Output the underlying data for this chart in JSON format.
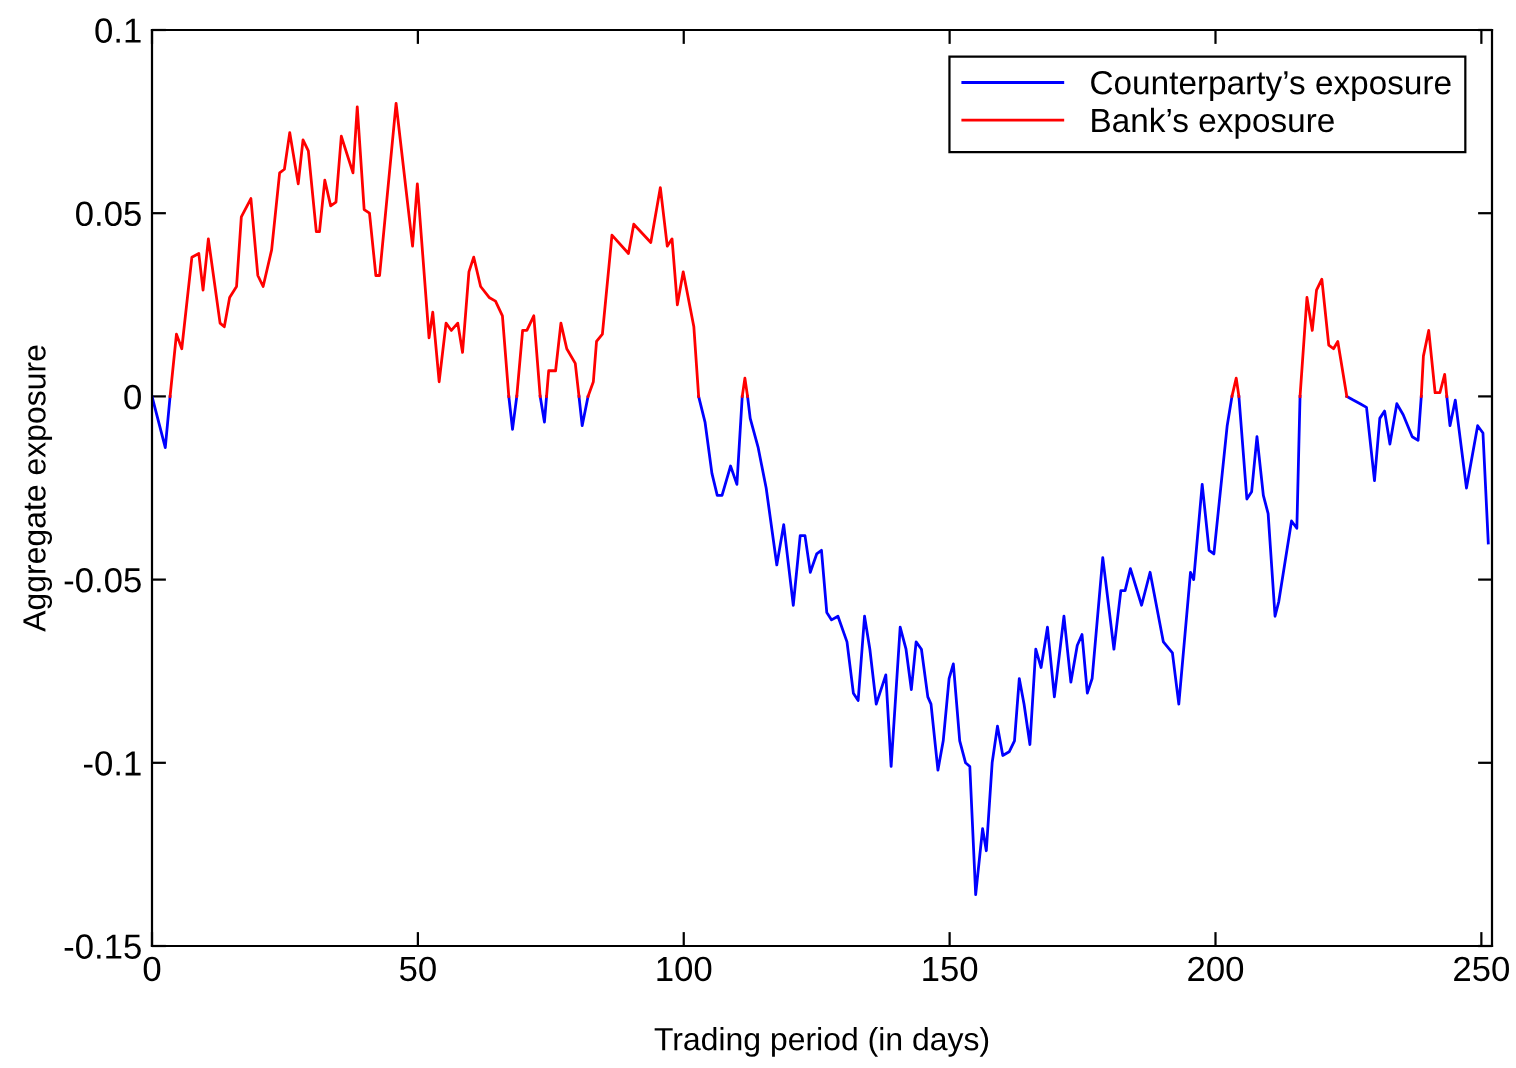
{
  "chart_data": {
    "type": "line",
    "xlabel": "Trading period (in days)",
    "ylabel": "Aggregate exposure",
    "xlim": [
      0,
      252
    ],
    "ylim": [
      -0.15,
      0.1
    ],
    "xticks": [
      0,
      50,
      100,
      150,
      200,
      250
    ],
    "yticks": [
      -0.15,
      -0.1,
      -0.05,
      0,
      0.05,
      0.1
    ],
    "grid": false,
    "legend": "top right",
    "line_style": "solid",
    "marker": "none",
    "series": [
      {
        "name": "Counterparty’s exposure",
        "color": "#0000ff",
        "x": [
          0,
          2.5,
          3.4,
          35,
          67.1,
          67.8,
          68.6,
          70,
          73,
          73.8,
          74.2,
          77,
          80.3,
          80.9,
          82,
          90,
          102.8,
          104,
          105.3,
          106.3,
          107.2,
          108.8,
          110,
          111,
          111.5,
          112,
          112.5,
          114,
          115.5,
          117.5,
          118.8,
          120.6,
          121.9,
          122.8,
          123.8,
          125,
          125.9,
          126.9,
          127.8,
          129,
          130.7,
          131.9,
          132.8,
          134,
          135,
          136.2,
          138,
          139,
          140.7,
          141.8,
          142.8,
          143.7,
          144.7,
          145.9,
          146.5,
          147.8,
          148.8,
          149.9,
          150.7,
          151.9,
          153,
          153.8,
          154.9,
          156.2,
          156.9,
          158,
          159,
          160,
          161.2,
          162.2,
          163.1,
          164,
          165.1,
          166.2,
          167.2,
          168.4,
          169.7,
          171.5,
          172.8,
          174,
          174.9,
          175.9,
          176.8,
          178.8,
          180.9,
          182.2,
          183,
          184,
          186.1,
          187.7,
          190.2,
          191.9,
          193.1,
          195.3,
          195.9,
          197.5,
          198.8,
          199.7,
          202.2,
          203.1,
          203.8,
          204.4,
          205.9,
          206.8,
          207.8,
          209,
          209.9,
          211.2,
          211.9,
          214.3,
          215.3,
          215.9,
          220,
          224.7,
          225.9,
          227.2,
          228.4,
          229.9,
          230.9,
          231.8,
          232.8,
          234.1,
          235.3,
          237,
          238.1,
          238.7,
          241,
          243.5,
          244.1,
          245.1,
          247.2,
          249.3,
          250.3,
          251.3
        ],
        "values": [
          0,
          -0.014,
          0,
          null,
          0,
          -0.009,
          0,
          null,
          0,
          -0.007,
          0,
          null,
          0,
          -0.008,
          0,
          null,
          0,
          -0.007,
          -0.021,
          -0.027,
          -0.027,
          -0.019,
          -0.024,
          0,
          null,
          0,
          -0.006,
          -0.014,
          -0.025,
          -0.046,
          -0.035,
          -0.057,
          -0.038,
          -0.038,
          -0.048,
          -0.043,
          -0.042,
          -0.059,
          -0.061,
          -0.06,
          -0.067,
          -0.081,
          -0.083,
          -0.06,
          -0.069,
          -0.084,
          -0.076,
          -0.101,
          -0.063,
          -0.069,
          -0.08,
          -0.067,
          -0.069,
          -0.082,
          -0.084,
          -0.102,
          -0.094,
          -0.077,
          -0.073,
          -0.094,
          -0.1,
          -0.101,
          -0.136,
          -0.118,
          -0.124,
          -0.1,
          -0.09,
          -0.098,
          -0.097,
          -0.094,
          -0.077,
          -0.084,
          -0.095,
          -0.069,
          -0.074,
          -0.063,
          -0.082,
          -0.06,
          -0.078,
          -0.068,
          -0.065,
          -0.081,
          -0.077,
          -0.044,
          -0.069,
          -0.053,
          -0.053,
          -0.047,
          -0.057,
          -0.048,
          -0.067,
          -0.07,
          -0.084,
          -0.048,
          -0.05,
          -0.024,
          -0.042,
          -0.043,
          -0.008,
          0,
          null,
          0,
          -0.028,
          -0.026,
          -0.011,
          -0.027,
          -0.032,
          -0.06,
          -0.056,
          -0.034,
          -0.036,
          0,
          null,
          0,
          -0.001,
          -0.002,
          -0.003,
          -0.023,
          -0.006,
          -0.004,
          -0.013,
          -0.002,
          -0.005,
          -0.011,
          -0.012,
          0,
          null,
          0,
          -0.008,
          -0.001,
          -0.025,
          -0.008,
          -0.01,
          -0.04
        ]
      },
      {
        "name": "Bank’s exposure",
        "color": "#ff0000",
        "x": [
          3.4,
          4.6,
          5.6,
          7.5,
          8.8,
          9.6,
          10.6,
          12.8,
          13.6,
          14.6,
          15.9,
          16.8,
          18.6,
          19.9,
          20.9,
          22.5,
          24,
          24.9,
          25.9,
          27.5,
          28.4,
          29.4,
          30.9,
          31.5,
          32.5,
          33.6,
          34.6,
          35.6,
          37.8,
          38.6,
          39.9,
          40.9,
          42.1,
          42.8,
          45.9,
          49,
          49.9,
          52.1,
          52.8,
          54,
          55.3,
          56.3,
          57.5,
          58.4,
          59.6,
          60.5,
          61.8,
          63.4,
          64.6,
          65.9,
          67.1,
          67.5,
          68.6,
          69.7,
          70.5,
          71.8,
          73,
          73.5,
          74.2,
          74.6,
          75.9,
          76.9,
          78,
          79.6,
          80.3,
          81,
          82,
          83,
          83.6,
          84.7,
          86.5,
          89.6,
          90.6,
          93.8,
          95.6,
          96.9,
          97.8,
          98.8,
          99.9,
          101.9,
          102.8,
          107,
          111,
          111.5,
          112,
          160,
          203.1,
          203.9,
          204.4,
          210,
          215.9,
          217.2,
          218.2,
          219,
          220,
          221.3,
          222.2,
          223,
          224.7,
          230,
          238.7,
          239.1,
          240.1,
          241.3,
          242.2,
          243.1,
          243.5
        ],
        "values": [
          0,
          0.017,
          0.013,
          0.038,
          0.039,
          0.029,
          0.043,
          0.02,
          0.019,
          0.027,
          0.03,
          0.049,
          0.054,
          0.033,
          0.03,
          0.04,
          0.061,
          0.062,
          0.072,
          0.058,
          0.07,
          0.067,
          0.045,
          0.045,
          0.059,
          0.052,
          0.053,
          0.071,
          0.061,
          0.079,
          0.051,
          0.05,
          0.033,
          0.033,
          0.08,
          0.041,
          0.058,
          0.016,
          0.023,
          0.004,
          0.02,
          0.018,
          0.02,
          0.012,
          0.034,
          0.038,
          0.03,
          0.027,
          0.026,
          0.022,
          0,
          null,
          0,
          0.018,
          0.018,
          0.022,
          0,
          null,
          0,
          0.007,
          0.007,
          0.02,
          0.013,
          0.009,
          0,
          null,
          0,
          0.004,
          0.015,
          0.017,
          0.044,
          0.039,
          0.047,
          0.042,
          0.057,
          0.041,
          0.043,
          0.025,
          0.034,
          0.019,
          0,
          null,
          0,
          0.005,
          0,
          null,
          0,
          0.005,
          0,
          null,
          0,
          0.027,
          0.018,
          0.029,
          0.032,
          0.014,
          0.013,
          0.015,
          0,
          null,
          0,
          0.011,
          0.018,
          0.001,
          0.001,
          0.006,
          0
        ]
      }
    ]
  }
}
